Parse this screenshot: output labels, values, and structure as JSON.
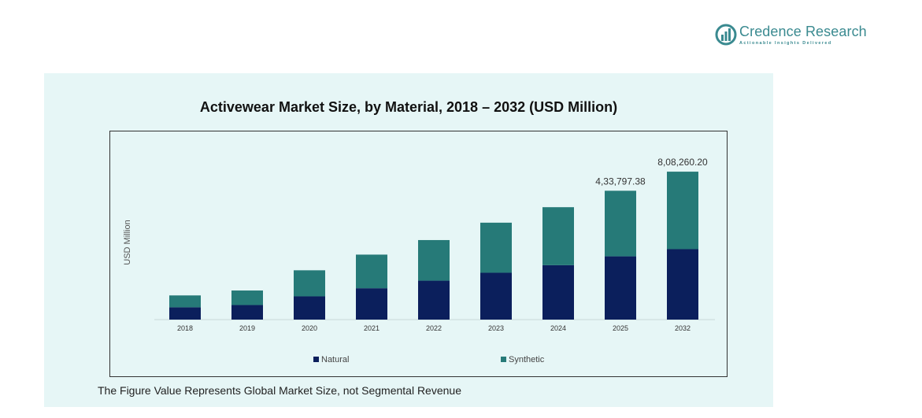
{
  "brand": {
    "name": "Credence Research",
    "tagline": "Actionable Insights Delivered",
    "color": "#3a8a90"
  },
  "footnote": "The Figure Value Represents Global Market Size, not Segmental Revenue",
  "chart_data": {
    "type": "bar",
    "stacked": true,
    "title": "Activewear Market Size, by Material, 2018 – 2032 (USD Million)",
    "xlabel": "",
    "ylabel": "USD Million",
    "categories": [
      "2018",
      "2019",
      "2020",
      "2021",
      "2022",
      "2023",
      "2024",
      "2025",
      "2032"
    ],
    "series": [
      {
        "name": "Natural",
        "color": "#0b1f5c",
        "values": [
          65000,
          77000,
          123000,
          166000,
          206000,
          248000,
          288000,
          335000,
          373000
        ]
      },
      {
        "name": "Synthetic",
        "color": "#267a78",
        "values": [
          63000,
          77000,
          138000,
          178000,
          215000,
          265000,
          307000,
          347000,
          410000
        ]
      }
    ],
    "data_labels": [
      {
        "category": "2025",
        "text": "4,33,797.38"
      },
      {
        "category": "2032",
        "text": "8,08,260.20"
      }
    ],
    "ylim": [
      0,
      1000000
    ],
    "grid": false,
    "legend_position": "bottom"
  }
}
